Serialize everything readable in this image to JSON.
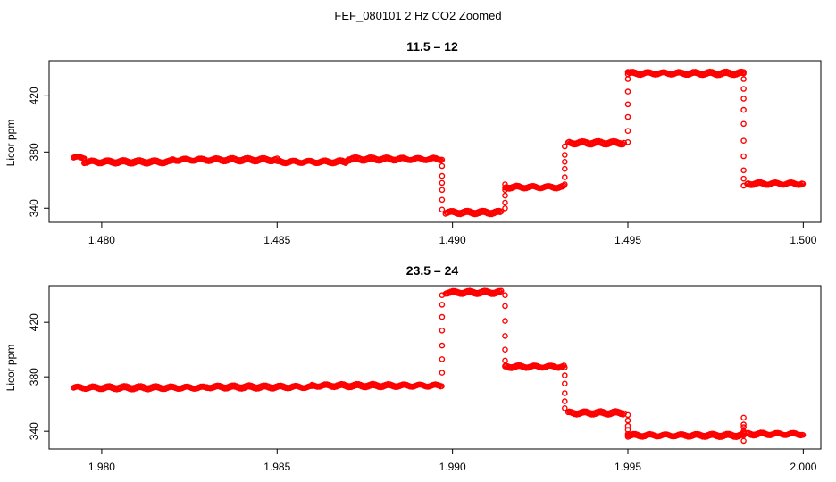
{
  "figure": {
    "title": "FEF_080101 2 Hz CO2 Zoomed"
  },
  "chart_data": [
    {
      "type": "scatter",
      "title": "11.5 – 12",
      "xlabel": "",
      "ylabel": "Licor ppm",
      "xlim": [
        1.4785,
        1.5005
      ],
      "ylim": [
        330,
        445
      ],
      "xticks": [
        1.48,
        1.485,
        1.49,
        1.495,
        1.5
      ],
      "xtick_labels": [
        "1.480",
        "1.485",
        "1.490",
        "1.495",
        "1.500"
      ],
      "yticks": [
        340,
        380,
        420
      ],
      "ytick_labels": [
        "340",
        "380",
        "420"
      ],
      "grid": false,
      "legend": "none",
      "marker": "open-circle",
      "color": "#ff0000",
      "segments": [
        {
          "x_start": 1.4792,
          "x_end": 1.4795,
          "y": 376
        },
        {
          "x_start": 1.4795,
          "x_end": 1.482,
          "y": 373
        },
        {
          "x_start": 1.482,
          "x_end": 1.485,
          "y": 374.5
        },
        {
          "x_start": 1.485,
          "x_end": 1.487,
          "y": 373
        },
        {
          "x_start": 1.487,
          "x_end": 1.4897,
          "y": 375
        }
      ],
      "transitions": [
        {
          "x": 1.4897,
          "y": [
            370,
            363,
            358,
            353,
            346,
            339
          ]
        },
        {
          "x": 1.4915,
          "y": [
            340,
            344,
            349,
            353,
            357
          ]
        },
        {
          "x": 1.4932,
          "y": [
            357,
            362,
            368,
            373,
            378,
            384
          ]
        },
        {
          "x": 1.495,
          "y": [
            387,
            395,
            405,
            414,
            423,
            432,
            437
          ]
        },
        {
          "x": 1.4983,
          "y": [
            436,
            432,
            425,
            418,
            410,
            400,
            388,
            377,
            367,
            361,
            356
          ]
        }
      ],
      "levels": [
        {
          "x_start": 1.4898,
          "x_end": 1.4914,
          "y": 337
        },
        {
          "x_start": 1.4915,
          "x_end": 1.4932,
          "y": 355
        },
        {
          "x_start": 1.4933,
          "x_end": 1.4949,
          "y": 386.5
        },
        {
          "x_start": 1.495,
          "x_end": 1.4983,
          "y": 436
        },
        {
          "x_start": 1.4984,
          "x_end": 1.5,
          "y": 357.5
        }
      ]
    },
    {
      "type": "scatter",
      "title": "23.5 – 24",
      "xlabel": "",
      "ylabel": "Licor ppm",
      "xlim": [
        1.9785,
        2.0005
      ],
      "ylim": [
        327,
        447
      ],
      "xticks": [
        1.98,
        1.985,
        1.99,
        1.995,
        2.0
      ],
      "xtick_labels": [
        "1.980",
        "1.985",
        "1.990",
        "1.995",
        "2.000"
      ],
      "yticks": [
        340,
        380,
        420
      ],
      "ytick_labels": [
        "340",
        "380",
        "420"
      ],
      "grid": false,
      "legend": "none",
      "marker": "open-circle",
      "color": "#ff0000",
      "segments": [
        {
          "x_start": 1.9792,
          "x_end": 1.983,
          "y": 372
        },
        {
          "x_start": 1.983,
          "x_end": 1.986,
          "y": 372.5
        },
        {
          "x_start": 1.986,
          "x_end": 1.9897,
          "y": 373.5
        }
      ],
      "transitions": [
        {
          "x": 1.9897,
          "y": [
            383,
            393,
            403,
            414,
            424,
            433,
            440
          ]
        },
        {
          "x": 1.9915,
          "y": [
            440,
            432,
            421,
            410,
            400,
            392,
            388
          ]
        },
        {
          "x": 1.9932,
          "y": [
            387,
            381,
            375,
            368,
            362,
            357
          ]
        },
        {
          "x": 1.995,
          "y": [
            352,
            348,
            344,
            341,
            338,
            337
          ]
        },
        {
          "x": 1.9983,
          "y": [
            337,
            340,
            345,
            350,
            343,
            339,
            333
          ]
        }
      ],
      "levels": [
        {
          "x_start": 1.9898,
          "x_end": 1.9914,
          "y": 442
        },
        {
          "x_start": 1.9915,
          "x_end": 1.9932,
          "y": 387.5
        },
        {
          "x_start": 1.9933,
          "x_end": 1.9949,
          "y": 353.5
        },
        {
          "x_start": 1.995,
          "x_end": 1.9983,
          "y": 337
        },
        {
          "x_start": 1.9984,
          "x_end": 2.0,
          "y": 338
        }
      ]
    }
  ]
}
